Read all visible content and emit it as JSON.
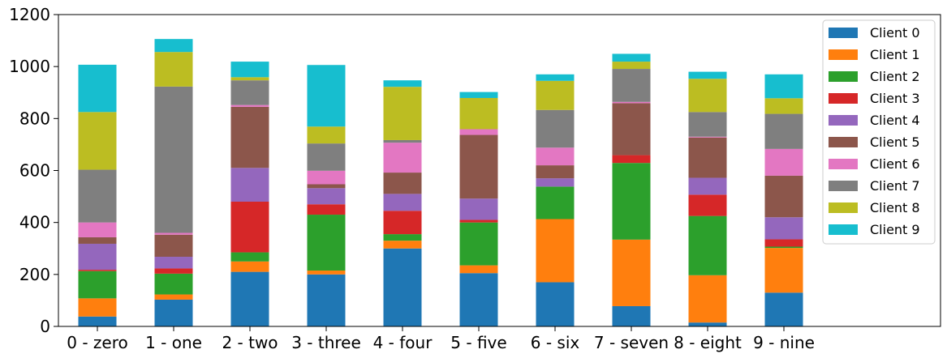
{
  "chart_data": {
    "type": "bar",
    "stacked": true,
    "categories": [
      "0 - zero",
      "1 - one",
      "2 - two",
      "3 - three",
      "4 - four",
      "5 - five",
      "6 - six",
      "7 - seven",
      "8 - eight",
      "9 - nine"
    ],
    "series": [
      {
        "name": "Client 0",
        "color": "#1f77b4",
        "values": [
          38,
          103,
          210,
          200,
          300,
          205,
          170,
          78,
          15,
          130
        ]
      },
      {
        "name": "Client 1",
        "color": "#ff7f0e",
        "values": [
          70,
          20,
          40,
          15,
          30,
          30,
          243,
          256,
          182,
          172
        ]
      },
      {
        "name": "Client 2",
        "color": "#2ca02c",
        "values": [
          105,
          80,
          35,
          215,
          25,
          165,
          125,
          295,
          228,
          5
        ]
      },
      {
        "name": "Client 3",
        "color": "#d62728",
        "values": [
          5,
          20,
          195,
          40,
          90,
          10,
          0,
          30,
          82,
          28
        ]
      },
      {
        "name": "Client 4",
        "color": "#9467bd",
        "values": [
          100,
          45,
          130,
          62,
          65,
          82,
          32,
          0,
          65,
          85
        ]
      },
      {
        "name": "Client 5",
        "color": "#8c564b",
        "values": [
          25,
          85,
          235,
          15,
          82,
          245,
          50,
          200,
          155,
          160
        ]
      },
      {
        "name": "Client 6",
        "color": "#e377c2",
        "values": [
          57,
          7,
          7,
          52,
          115,
          22,
          68,
          5,
          3,
          103
        ]
      },
      {
        "name": "Client 7",
        "color": "#7f7f7f",
        "values": [
          203,
          563,
          95,
          105,
          10,
          0,
          145,
          127,
          95,
          135
        ]
      },
      {
        "name": "Client 8",
        "color": "#bcbd22",
        "values": [
          222,
          133,
          12,
          65,
          205,
          120,
          112,
          28,
          128,
          60
        ]
      },
      {
        "name": "Client 9",
        "color": "#17becf",
        "values": [
          182,
          50,
          60,
          237,
          25,
          23,
          25,
          30,
          27,
          92
        ]
      }
    ],
    "ylim": [
      0,
      1200
    ],
    "yticks": [
      "0",
      "200",
      "400",
      "600",
      "800",
      "1000",
      "1200"
    ],
    "legend": "top-right",
    "grid": false
  }
}
